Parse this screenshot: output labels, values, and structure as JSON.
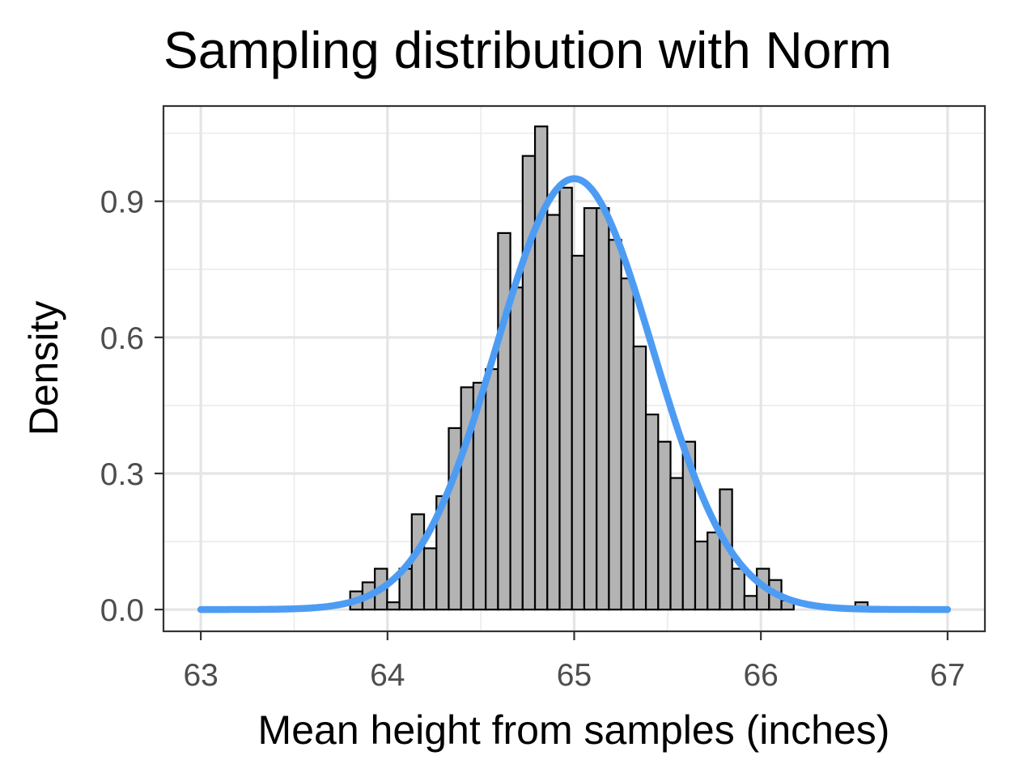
{
  "chart_data": {
    "type": "bar",
    "title": "Sampling distribution with Norm",
    "xlabel": "Mean height from samples (inches)",
    "ylabel": "Density",
    "xlim": [
      62.8,
      67.2
    ],
    "ylim": [
      -0.048,
      1.11
    ],
    "x_ticks": [
      63,
      64,
      65,
      66,
      67
    ],
    "x_tick_labels": [
      "63",
      "64",
      "65",
      "66",
      "67"
    ],
    "y_ticks": [
      0.0,
      0.3,
      0.6,
      0.9
    ],
    "y_tick_labels": [
      "0.0",
      "0.3",
      "0.6",
      "0.9"
    ],
    "grid": true,
    "histogram": {
      "bin_start": 63.8,
      "bin_width": 0.066,
      "densities": [
        0.04,
        0.06,
        0.09,
        0.016,
        0.09,
        0.21,
        0.135,
        0.25,
        0.4,
        0.49,
        0.5,
        0.53,
        0.83,
        0.71,
        1.0,
        1.065,
        0.87,
        0.93,
        0.78,
        0.885,
        0.885,
        0.815,
        0.73,
        0.58,
        0.43,
        0.37,
        0.29,
        0.37,
        0.15,
        0.17,
        0.265,
        0.09,
        0.03,
        0.09,
        0.065,
        0.02,
        0.0,
        0.0,
        0.0,
        0.0,
        0.0,
        0.016
      ],
      "fill_color": "#b3b3b3",
      "edge_color": "#000000"
    },
    "normal_curve": {
      "mean": 65.0,
      "sd": 0.42,
      "x_range": [
        63,
        67
      ],
      "color": "#4d9cf3"
    }
  }
}
